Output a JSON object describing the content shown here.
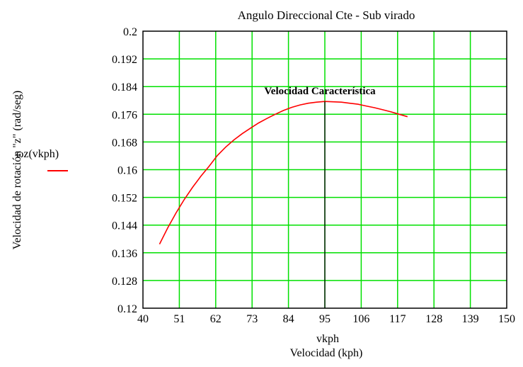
{
  "chart_data": {
    "type": "line",
    "title": "Angulo Direccional Cte - Sub virado",
    "xlabel_var": "vkph",
    "xlabel": "Velocidad (kph)",
    "ylabel": "Velocidad de rotación \"z\" (rad/seg)",
    "xlim": [
      40,
      150
    ],
    "ylim": [
      0.12,
      0.2
    ],
    "x_ticks": [
      "40",
      "51",
      "62",
      "73",
      "84",
      "95",
      "106",
      "117",
      "128",
      "139",
      "150"
    ],
    "y_ticks": [
      "0.2",
      "0.192",
      "0.184",
      "0.176",
      "0.168",
      "0.16",
      "0.152",
      "0.144",
      "0.136",
      "0.128",
      "0.12"
    ],
    "grid": true,
    "grid_color": "#00e000",
    "series": [
      {
        "name": "ωz(vkph)",
        "color": "#ff0000",
        "x": [
          45,
          47.5,
          50,
          52.5,
          55,
          57.5,
          60,
          62.5,
          65,
          67.5,
          70,
          72.5,
          75,
          77.5,
          80,
          82.5,
          85,
          87.5,
          90,
          92.5,
          95,
          97.5,
          100,
          102.5,
          105,
          107.5,
          110,
          112.5,
          115,
          117.5,
          120
        ],
        "y": [
          0.1385,
          0.1432,
          0.1475,
          0.1514,
          0.1549,
          0.1581,
          0.161,
          0.1641,
          0.1665,
          0.1686,
          0.1704,
          0.172,
          0.1735,
          0.1748,
          0.176,
          0.1771,
          0.178,
          0.1787,
          0.1792,
          0.1795,
          0.1797,
          0.1796,
          0.1795,
          0.1792,
          0.1789,
          0.1784,
          0.1779,
          0.1773,
          0.1767,
          0.176,
          0.1753
        ]
      }
    ],
    "vertical_line": {
      "x": 95,
      "y_top": 0.1797,
      "label": "Velocidad Característica"
    }
  }
}
